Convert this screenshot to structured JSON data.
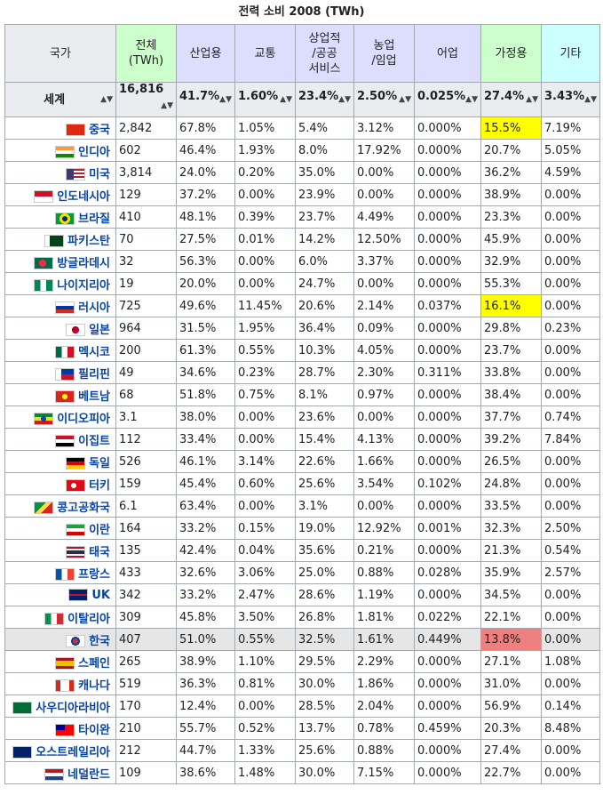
{
  "caption": "전력 소비 2008 (TWh)",
  "headers": {
    "country": "국가",
    "total_line1": "전체",
    "total_line2": "(TWh)",
    "industry": "산업용",
    "transport": "교통",
    "commercial_line1": "상업적",
    "commercial_line2": "/공공",
    "commercial_line3": "서비스",
    "agri_line1": "농업",
    "agri_line2": "/임업",
    "fishing": "어업",
    "household": "가정용",
    "other": "기타"
  },
  "world": {
    "name": "세계",
    "total": "16,816",
    "industry": "41.7%",
    "transport": "1.60%",
    "commercial": "23.4%",
    "agri": "2.50%",
    "fishing": "0.025%",
    "household": "27.4%",
    "other": "3.43%"
  },
  "rows": [
    {
      "name": "중국",
      "flag": "china-flag",
      "total": "2,842",
      "industry": "67.8%",
      "transport": "1.05%",
      "commercial": "5.4%",
      "agri": "3.12%",
      "fishing": "0.000%",
      "household": "15.5%",
      "other": "7.19%",
      "hh_mark": "yellow"
    },
    {
      "name": "인디아",
      "flag": "india-flag",
      "total": "602",
      "industry": "46.4%",
      "transport": "1.93%",
      "commercial": "8.0%",
      "agri": "17.92%",
      "fishing": "0.000%",
      "household": "20.7%",
      "other": "5.05%"
    },
    {
      "name": "미국",
      "flag": "usa-flag",
      "total": "3,814",
      "industry": "24.0%",
      "transport": "0.20%",
      "commercial": "35.0%",
      "agri": "0.00%",
      "fishing": "0.000%",
      "household": "36.2%",
      "other": "4.59%"
    },
    {
      "name": "인도네시아",
      "flag": "indonesia-flag",
      "total": "129",
      "industry": "37.2%",
      "transport": "0.00%",
      "commercial": "23.9%",
      "agri": "0.00%",
      "fishing": "0.000%",
      "household": "38.9%",
      "other": "0.00%"
    },
    {
      "name": "브라질",
      "flag": "brazil-flag",
      "total": "410",
      "industry": "48.1%",
      "transport": "0.39%",
      "commercial": "23.7%",
      "agri": "4.49%",
      "fishing": "0.000%",
      "household": "23.3%",
      "other": "0.00%"
    },
    {
      "name": "파키스탄",
      "flag": "pakistan-flag",
      "total": "70",
      "industry": "27.5%",
      "transport": "0.01%",
      "commercial": "14.2%",
      "agri": "12.50%",
      "fishing": "0.000%",
      "household": "45.9%",
      "other": "0.00%"
    },
    {
      "name": "방글라데시",
      "flag": "bangladesh-flag",
      "total": "32",
      "industry": "56.3%",
      "transport": "0.00%",
      "commercial": "6.0%",
      "agri": "3.37%",
      "fishing": "0.000%",
      "household": "32.9%",
      "other": "0.00%"
    },
    {
      "name": "나이지리아",
      "flag": "nigeria-flag",
      "total": "19",
      "industry": "20.0%",
      "transport": "0.00%",
      "commercial": "24.7%",
      "agri": "0.00%",
      "fishing": "0.000%",
      "household": "55.3%",
      "other": "0.00%"
    },
    {
      "name": "러시아",
      "flag": "russia-flag",
      "total": "725",
      "industry": "49.6%",
      "transport": "11.45%",
      "commercial": "20.6%",
      "agri": "2.14%",
      "fishing": "0.037%",
      "household": "16.1%",
      "other": "0.00%",
      "hh_mark": "yellow"
    },
    {
      "name": "일본",
      "flag": "japan-flag",
      "total": "964",
      "industry": "31.5%",
      "transport": "1.95%",
      "commercial": "36.4%",
      "agri": "0.09%",
      "fishing": "0.000%",
      "household": "29.8%",
      "other": "0.23%"
    },
    {
      "name": "멕시코",
      "flag": "mexico-flag",
      "total": "200",
      "industry": "61.3%",
      "transport": "0.55%",
      "commercial": "10.3%",
      "agri": "4.05%",
      "fishing": "0.000%",
      "household": "23.7%",
      "other": "0.00%"
    },
    {
      "name": "필리핀",
      "flag": "philippines-flag",
      "total": "49",
      "industry": "34.6%",
      "transport": "0.23%",
      "commercial": "28.7%",
      "agri": "2.30%",
      "fishing": "0.311%",
      "household": "33.8%",
      "other": "0.00%"
    },
    {
      "name": "베트남",
      "flag": "vietnam-flag",
      "total": "68",
      "industry": "51.8%",
      "transport": "0.75%",
      "commercial": "8.1%",
      "agri": "0.97%",
      "fishing": "0.000%",
      "household": "38.4%",
      "other": "0.00%"
    },
    {
      "name": "이디오피아",
      "flag": "ethiopia-flag",
      "total": "3.1",
      "industry": "38.0%",
      "transport": "0.00%",
      "commercial": "23.6%",
      "agri": "0.00%",
      "fishing": "0.000%",
      "household": "37.7%",
      "other": "0.74%"
    },
    {
      "name": "이집트",
      "flag": "egypt-flag",
      "total": "112",
      "industry": "33.4%",
      "transport": "0.00%",
      "commercial": "15.4%",
      "agri": "4.13%",
      "fishing": "0.000%",
      "household": "39.2%",
      "other": "7.84%"
    },
    {
      "name": "독일",
      "flag": "germany-flag",
      "total": "526",
      "industry": "46.1%",
      "transport": "3.14%",
      "commercial": "22.6%",
      "agri": "1.66%",
      "fishing": "0.000%",
      "household": "26.5%",
      "other": "0.00%"
    },
    {
      "name": "터키",
      "flag": "turkey-flag",
      "total": "159",
      "industry": "45.4%",
      "transport": "0.60%",
      "commercial": "25.6%",
      "agri": "3.54%",
      "fishing": "0.102%",
      "household": "24.8%",
      "other": "0.00%"
    },
    {
      "name": "콩고공화국",
      "flag": "congo-flag",
      "total": "6.1",
      "industry": "63.4%",
      "transport": "0.00%",
      "commercial": "3.1%",
      "agri": "0.00%",
      "fishing": "0.000%",
      "household": "33.5%",
      "other": "0.00%"
    },
    {
      "name": "이란",
      "flag": "iran-flag",
      "total": "164",
      "industry": "33.2%",
      "transport": "0.15%",
      "commercial": "19.0%",
      "agri": "12.92%",
      "fishing": "0.001%",
      "household": "32.3%",
      "other": "2.50%"
    },
    {
      "name": "태국",
      "flag": "thailand-flag",
      "total": "135",
      "industry": "42.4%",
      "transport": "0.04%",
      "commercial": "35.6%",
      "agri": "0.21%",
      "fishing": "0.000%",
      "household": "21.3%",
      "other": "0.54%"
    },
    {
      "name": "프랑스",
      "flag": "france-flag",
      "total": "433",
      "industry": "32.6%",
      "transport": "3.06%",
      "commercial": "25.0%",
      "agri": "0.88%",
      "fishing": "0.028%",
      "household": "35.9%",
      "other": "2.57%"
    },
    {
      "name": "UK",
      "flag": "uk-flag",
      "total": "342",
      "industry": "33.2%",
      "transport": "2.47%",
      "commercial": "28.6%",
      "agri": "1.19%",
      "fishing": "0.000%",
      "household": "34.5%",
      "other": "0.00%"
    },
    {
      "name": "이탈리아",
      "flag": "italy-flag",
      "total": "309",
      "industry": "45.8%",
      "transport": "3.50%",
      "commercial": "26.8%",
      "agri": "1.81%",
      "fishing": "0.022%",
      "household": "22.1%",
      "other": "0.00%"
    },
    {
      "name": "한국",
      "flag": "korea-flag",
      "total": "407",
      "industry": "51.0%",
      "transport": "0.55%",
      "commercial": "32.5%",
      "agri": "1.61%",
      "fishing": "0.449%",
      "household": "13.8%",
      "other": "0.00%",
      "hh_mark": "red",
      "highlight": true
    },
    {
      "name": "스페인",
      "flag": "spain-flag",
      "total": "265",
      "industry": "38.9%",
      "transport": "1.10%",
      "commercial": "29.5%",
      "agri": "2.29%",
      "fishing": "0.000%",
      "household": "27.1%",
      "other": "1.08%"
    },
    {
      "name": "캐나다",
      "flag": "canada-flag",
      "total": "519",
      "industry": "36.3%",
      "transport": "0.81%",
      "commercial": "30.0%",
      "agri": "1.86%",
      "fishing": "0.000%",
      "household": "31.0%",
      "other": "0.00%"
    },
    {
      "name": "사우디아라비아",
      "flag": "saudi-flag",
      "total": "170",
      "industry": "12.4%",
      "transport": "0.00%",
      "commercial": "28.5%",
      "agri": "2.04%",
      "fishing": "0.000%",
      "household": "56.9%",
      "other": "0.14%"
    },
    {
      "name": "타이완",
      "flag": "taiwan-flag",
      "total": "210",
      "industry": "55.7%",
      "transport": "0.52%",
      "commercial": "13.7%",
      "agri": "0.78%",
      "fishing": "0.459%",
      "household": "20.3%",
      "other": "8.48%"
    },
    {
      "name": "오스트레일리아",
      "flag": "australia-flag",
      "total": "212",
      "industry": "44.7%",
      "transport": "1.33%",
      "commercial": "25.6%",
      "agri": "0.88%",
      "fishing": "0.000%",
      "household": "27.4%",
      "other": "0.00%"
    },
    {
      "name": "네덜란드",
      "flag": "netherlands-flag",
      "total": "109",
      "industry": "38.6%",
      "transport": "1.48%",
      "commercial": "30.0%",
      "agri": "7.15%",
      "fishing": "0.000%",
      "household": "22.7%",
      "other": "0.00%"
    }
  ]
}
